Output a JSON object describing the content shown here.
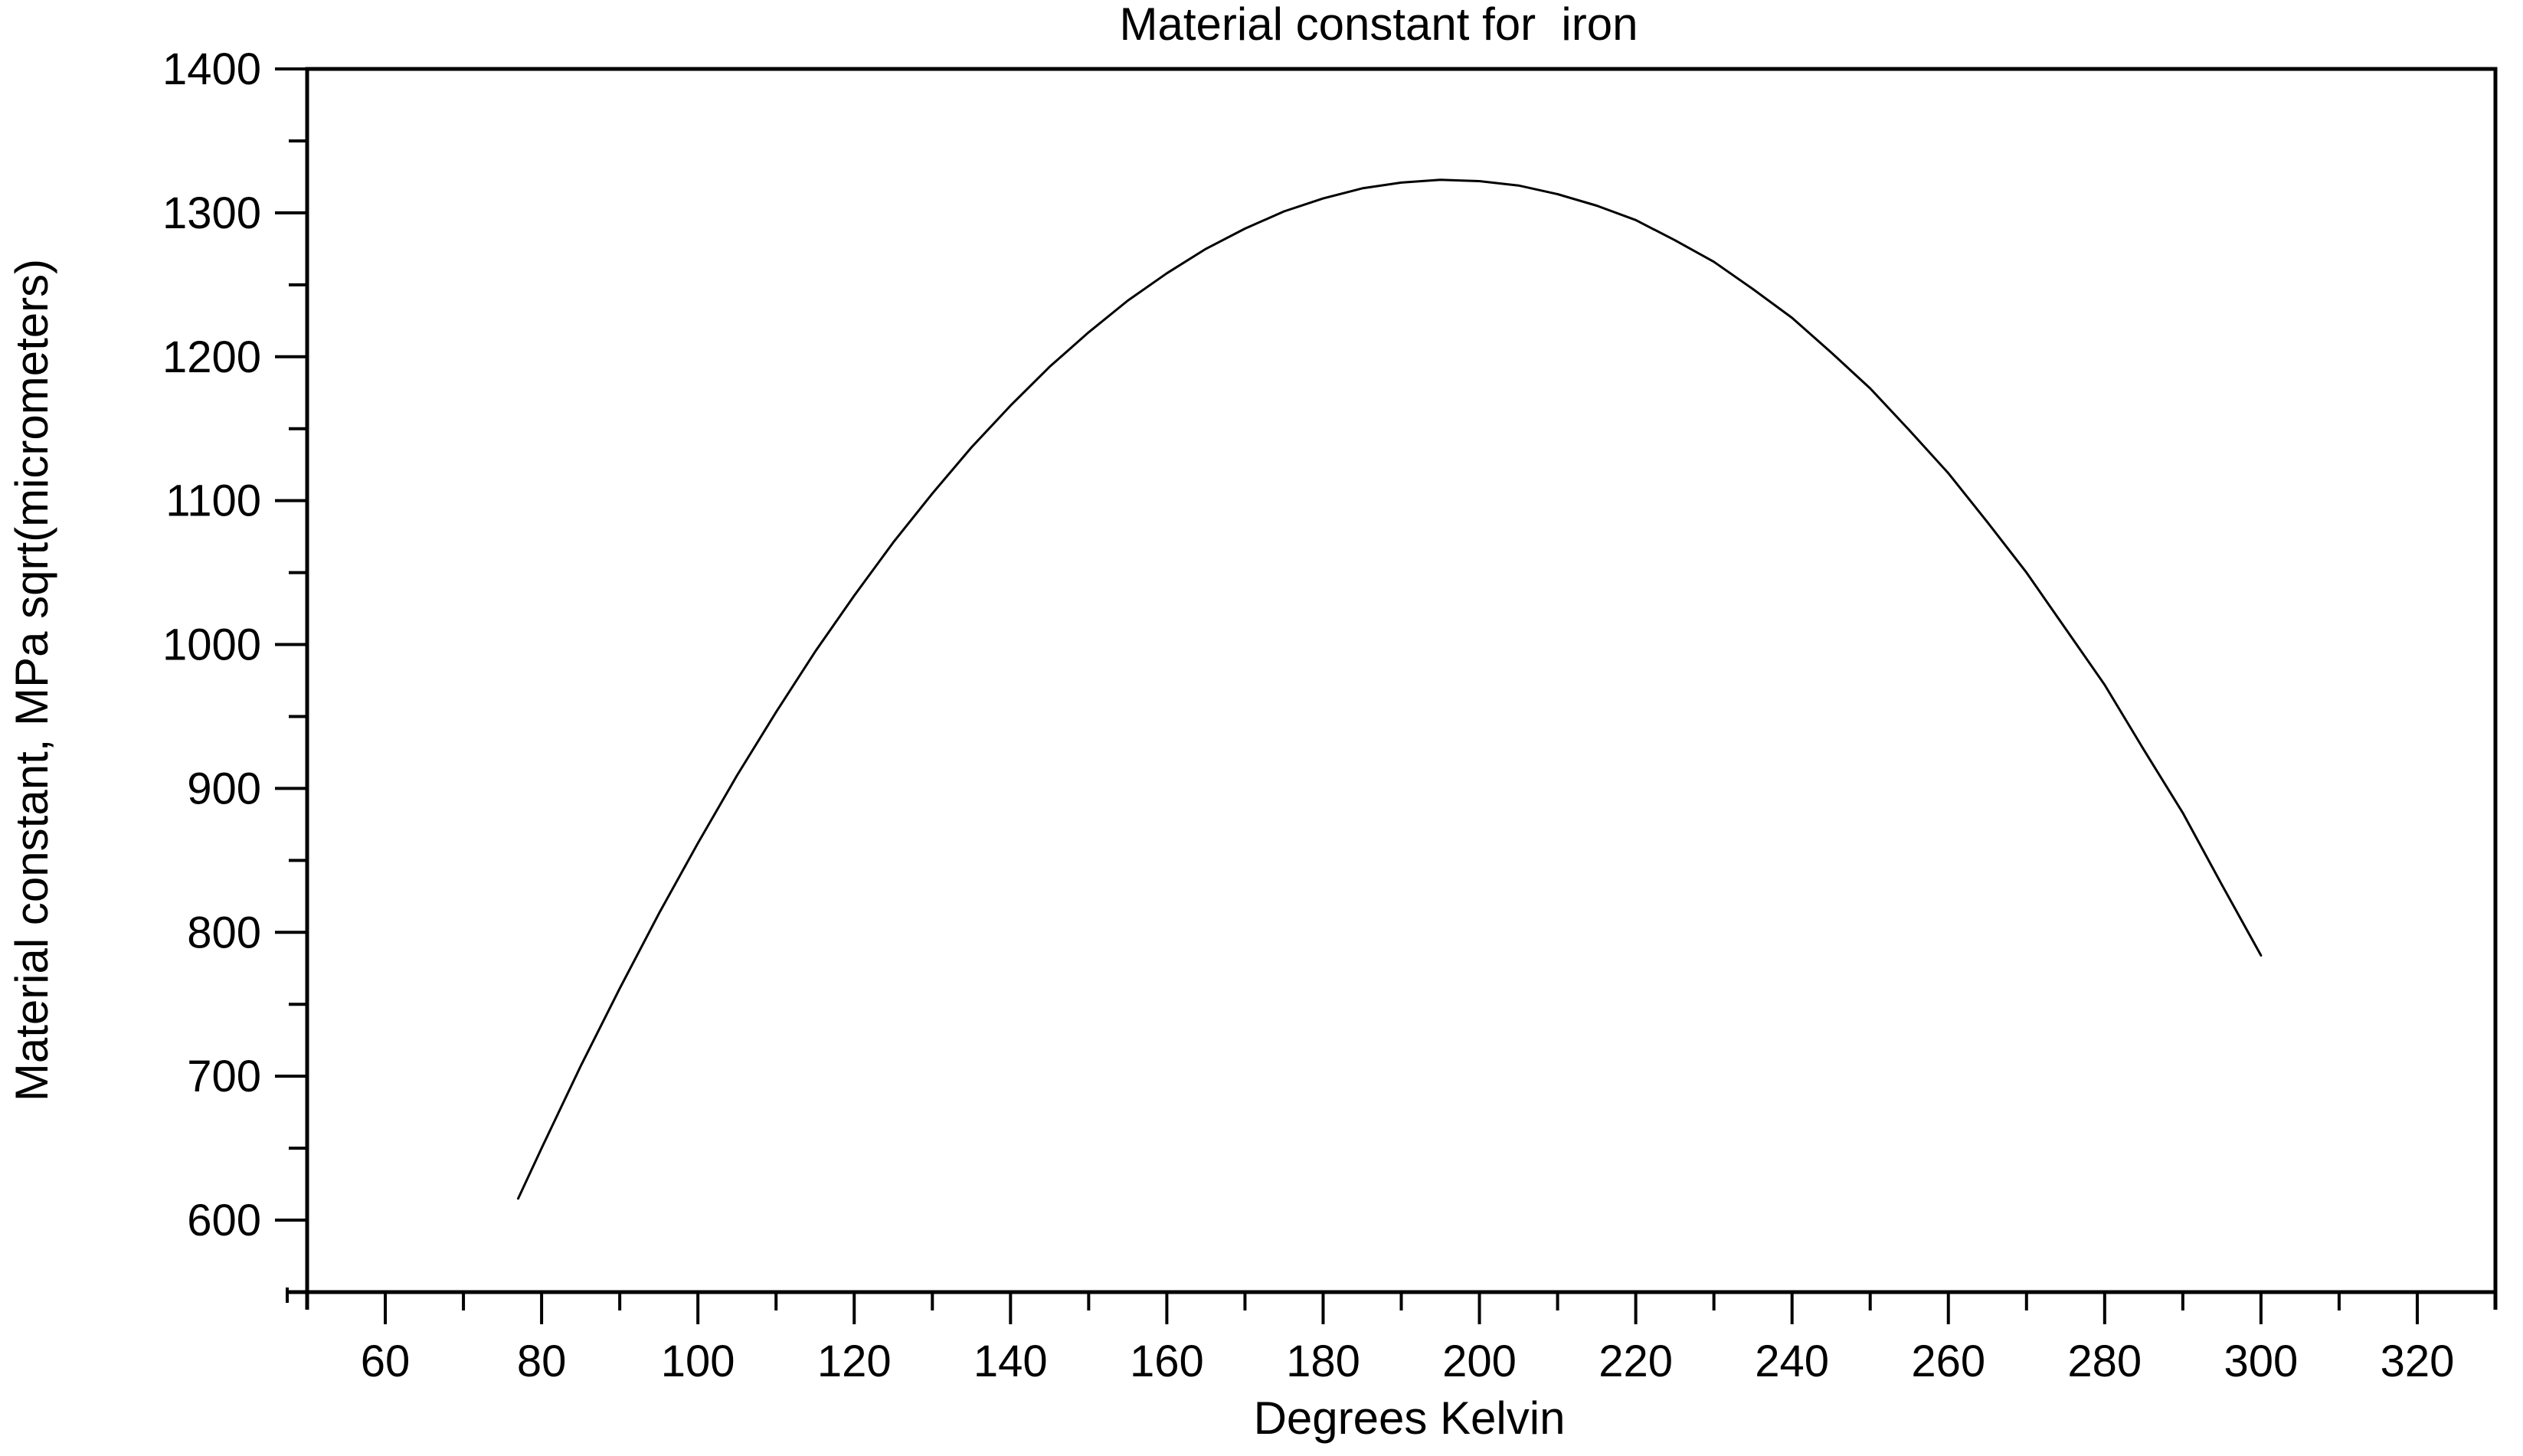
{
  "figure": {
    "title": "Material constant for  iron",
    "xlabel": "Degrees Kelvin",
    "ylabel": "Material constant, MPa sqrt(micrometers)"
  },
  "colors": {
    "line": "#000000",
    "axis": "#000000",
    "background": "#ffffff"
  },
  "chart_data": {
    "type": "line",
    "title": "Material constant for  iron",
    "xlabel": "Degrees Kelvin",
    "ylabel": "Material constant, MPa sqrt(micrometers)",
    "xlim": [
      50,
      330
    ],
    "ylim": [
      550,
      1400
    ],
    "x_major_ticks": [
      60,
      80,
      100,
      120,
      140,
      160,
      180,
      200,
      220,
      240,
      260,
      280,
      300,
      320
    ],
    "x_minor_ticks": [
      70,
      90,
      110,
      130,
      150,
      170,
      190,
      210,
      230,
      250,
      270,
      290,
      310
    ],
    "y_major_ticks": [
      600,
      700,
      800,
      900,
      1000,
      1100,
      1200,
      1300,
      1400
    ],
    "y_minor_ticks": [
      650,
      750,
      850,
      950,
      1050,
      1150,
      1250,
      1350
    ],
    "grid": false,
    "legend": null,
    "line_color": "#000000",
    "start_point": {
      "x": 77,
      "y": 615
    },
    "peak_point": {
      "x": 196,
      "y": 1323
    },
    "end_point": {
      "x": 300,
      "y": 784
    },
    "series": [
      {
        "name": "material-constant-iron",
        "x": [
          77,
          80,
          85,
          90,
          95,
          100,
          105,
          110,
          115,
          120,
          125,
          130,
          135,
          140,
          145,
          150,
          155,
          160,
          165,
          170,
          175,
          180,
          185,
          190,
          195,
          200,
          205,
          210,
          215,
          220,
          225,
          230,
          235,
          240,
          245,
          250,
          255,
          260,
          265,
          270,
          275,
          280,
          285,
          290,
          295,
          300
        ],
        "y": [
          615,
          650,
          707,
          761,
          813,
          862,
          909,
          953,
          995,
          1034,
          1071,
          1105,
          1137,
          1166,
          1193,
          1217,
          1239,
          1258,
          1275,
          1289,
          1301,
          1310,
          1317,
          1321,
          1323,
          1322,
          1319,
          1313,
          1305,
          1295,
          1281,
          1266,
          1247,
          1227,
          1203,
          1178,
          1149,
          1119,
          1085,
          1050,
          1011,
          972,
          927,
          883,
          833,
          784
        ]
      }
    ]
  }
}
